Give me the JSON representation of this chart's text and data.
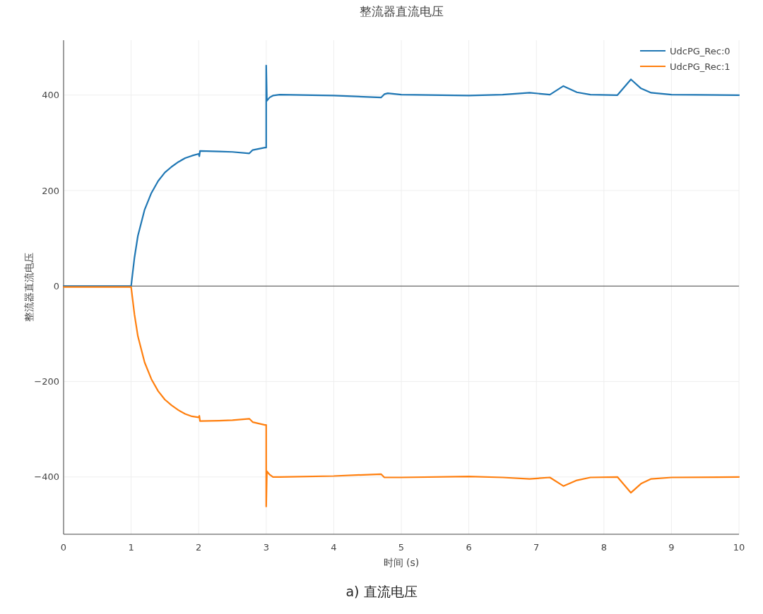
{
  "chart_data": {
    "type": "line",
    "title": "整流器直流电压",
    "xlabel": "时间 (s)",
    "ylabel": "整流器直流电压",
    "annotations": [
      "a) 直流电压"
    ],
    "xlim": [
      0,
      10
    ],
    "ylim": [
      -520,
      515
    ],
    "xticks": [
      0,
      1,
      2,
      3,
      4,
      5,
      6,
      7,
      8,
      9,
      10
    ],
    "yticks": [
      {
        "value": -400,
        "label": "−400"
      },
      {
        "value": -200,
        "label": "−200"
      },
      0,
      200,
      400
    ],
    "grid": true,
    "legend": "top right",
    "series": [
      {
        "name": "UdcPG_Rec:0",
        "color": "#1f77b4",
        "x": [
          0,
          1,
          1.05,
          1.1,
          1.2,
          1.3,
          1.4,
          1.5,
          1.6,
          1.7,
          1.8,
          1.9,
          2.0,
          2.01,
          2.02,
          2.3,
          2.5,
          2.75,
          2.8,
          2.98,
          3.0,
          3.0,
          3.01,
          3.05,
          3.1,
          3.2,
          4,
          4.7,
          4.75,
          4.8,
          5,
          6,
          6.5,
          6.9,
          7.2,
          7.4,
          7.6,
          7.8,
          8.2,
          8.4,
          8.55,
          8.7,
          9,
          10
        ],
        "values": [
          0,
          0,
          60,
          105,
          160,
          195,
          220,
          238,
          250,
          260,
          268,
          273,
          277,
          272,
          283,
          282,
          281,
          278,
          285,
          290,
          290,
          462,
          388,
          395,
          399,
          401,
          399,
          395,
          402,
          404,
          401,
          399,
          401,
          405,
          401,
          419,
          406,
          401,
          400,
          433,
          414,
          405,
          401,
          400
        ]
      },
      {
        "name": "UdcPG_Rec:1",
        "color": "#ff7f0e",
        "x": [
          0,
          1,
          1.05,
          1.1,
          1.2,
          1.3,
          1.4,
          1.5,
          1.6,
          1.7,
          1.8,
          1.9,
          2.0,
          2.01,
          2.02,
          2.3,
          2.5,
          2.75,
          2.8,
          2.98,
          3.0,
          3.0,
          3.01,
          3.05,
          3.1,
          3.2,
          4,
          4.7,
          4.75,
          4.8,
          5,
          6,
          6.5,
          6.9,
          7.2,
          7.4,
          7.6,
          7.8,
          8.2,
          8.4,
          8.55,
          8.7,
          9,
          10
        ],
        "values": [
          -2,
          -2,
          -60,
          -105,
          -160,
          -195,
          -220,
          -238,
          -250,
          -260,
          -268,
          -273,
          -275,
          -272,
          -283,
          -282,
          -281,
          -278,
          -285,
          -291,
          -291,
          -462,
          -388,
          -395,
          -400,
          -400,
          -398,
          -394,
          -401,
          -401,
          -401,
          -399,
          -401,
          -404,
          -401,
          -419,
          -407,
          -401,
          -400,
          -433,
          -414,
          -404,
          -401,
          -400
        ]
      }
    ]
  }
}
